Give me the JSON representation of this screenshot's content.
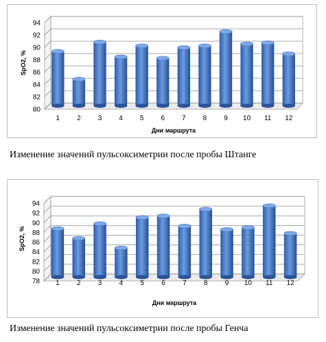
{
  "charts": [
    {
      "caption": "Изменение значений пульсоксиметрии после пробы Штанге"
    },
    {
      "caption": "Изменение значений пульсоксиметрии после пробы Генча"
    }
  ],
  "chart_data": [
    {
      "type": "bar",
      "categories": [
        "1",
        "2",
        "3",
        "4",
        "5",
        "6",
        "7",
        "8",
        "9",
        "10",
        "11",
        "12"
      ],
      "values": [
        88.8,
        84.3,
        90.3,
        87.9,
        89.7,
        87.7,
        89.4,
        89.7,
        92.0,
        90.0,
        90.2,
        88.4
      ],
      "xlabel": "Дни маршрута",
      "ylabel": "SpO2, %",
      "ylim": [
        80,
        94
      ],
      "yticks": [
        "80",
        "82",
        "84",
        "86",
        "88",
        "90",
        "92",
        "94"
      ],
      "grid": true,
      "bar_color": "#3a6ec0"
    },
    {
      "type": "bar",
      "categories": [
        "1",
        "2",
        "3",
        "4",
        "5",
        "6",
        "7",
        "8",
        "9",
        "10",
        "11",
        "12"
      ],
      "values": [
        88.0,
        86.0,
        89.0,
        84.0,
        90.3,
        90.6,
        88.5,
        92.0,
        87.8,
        88.2,
        92.7,
        87.0
      ],
      "xlabel": "Дни маршрута",
      "ylabel": "SpO2, %",
      "ylim": [
        78,
        94
      ],
      "yticks": [
        "78",
        "80",
        "82",
        "84",
        "86",
        "88",
        "90",
        "92",
        "94"
      ],
      "grid": true,
      "bar_color": "#3a6ec0"
    }
  ]
}
